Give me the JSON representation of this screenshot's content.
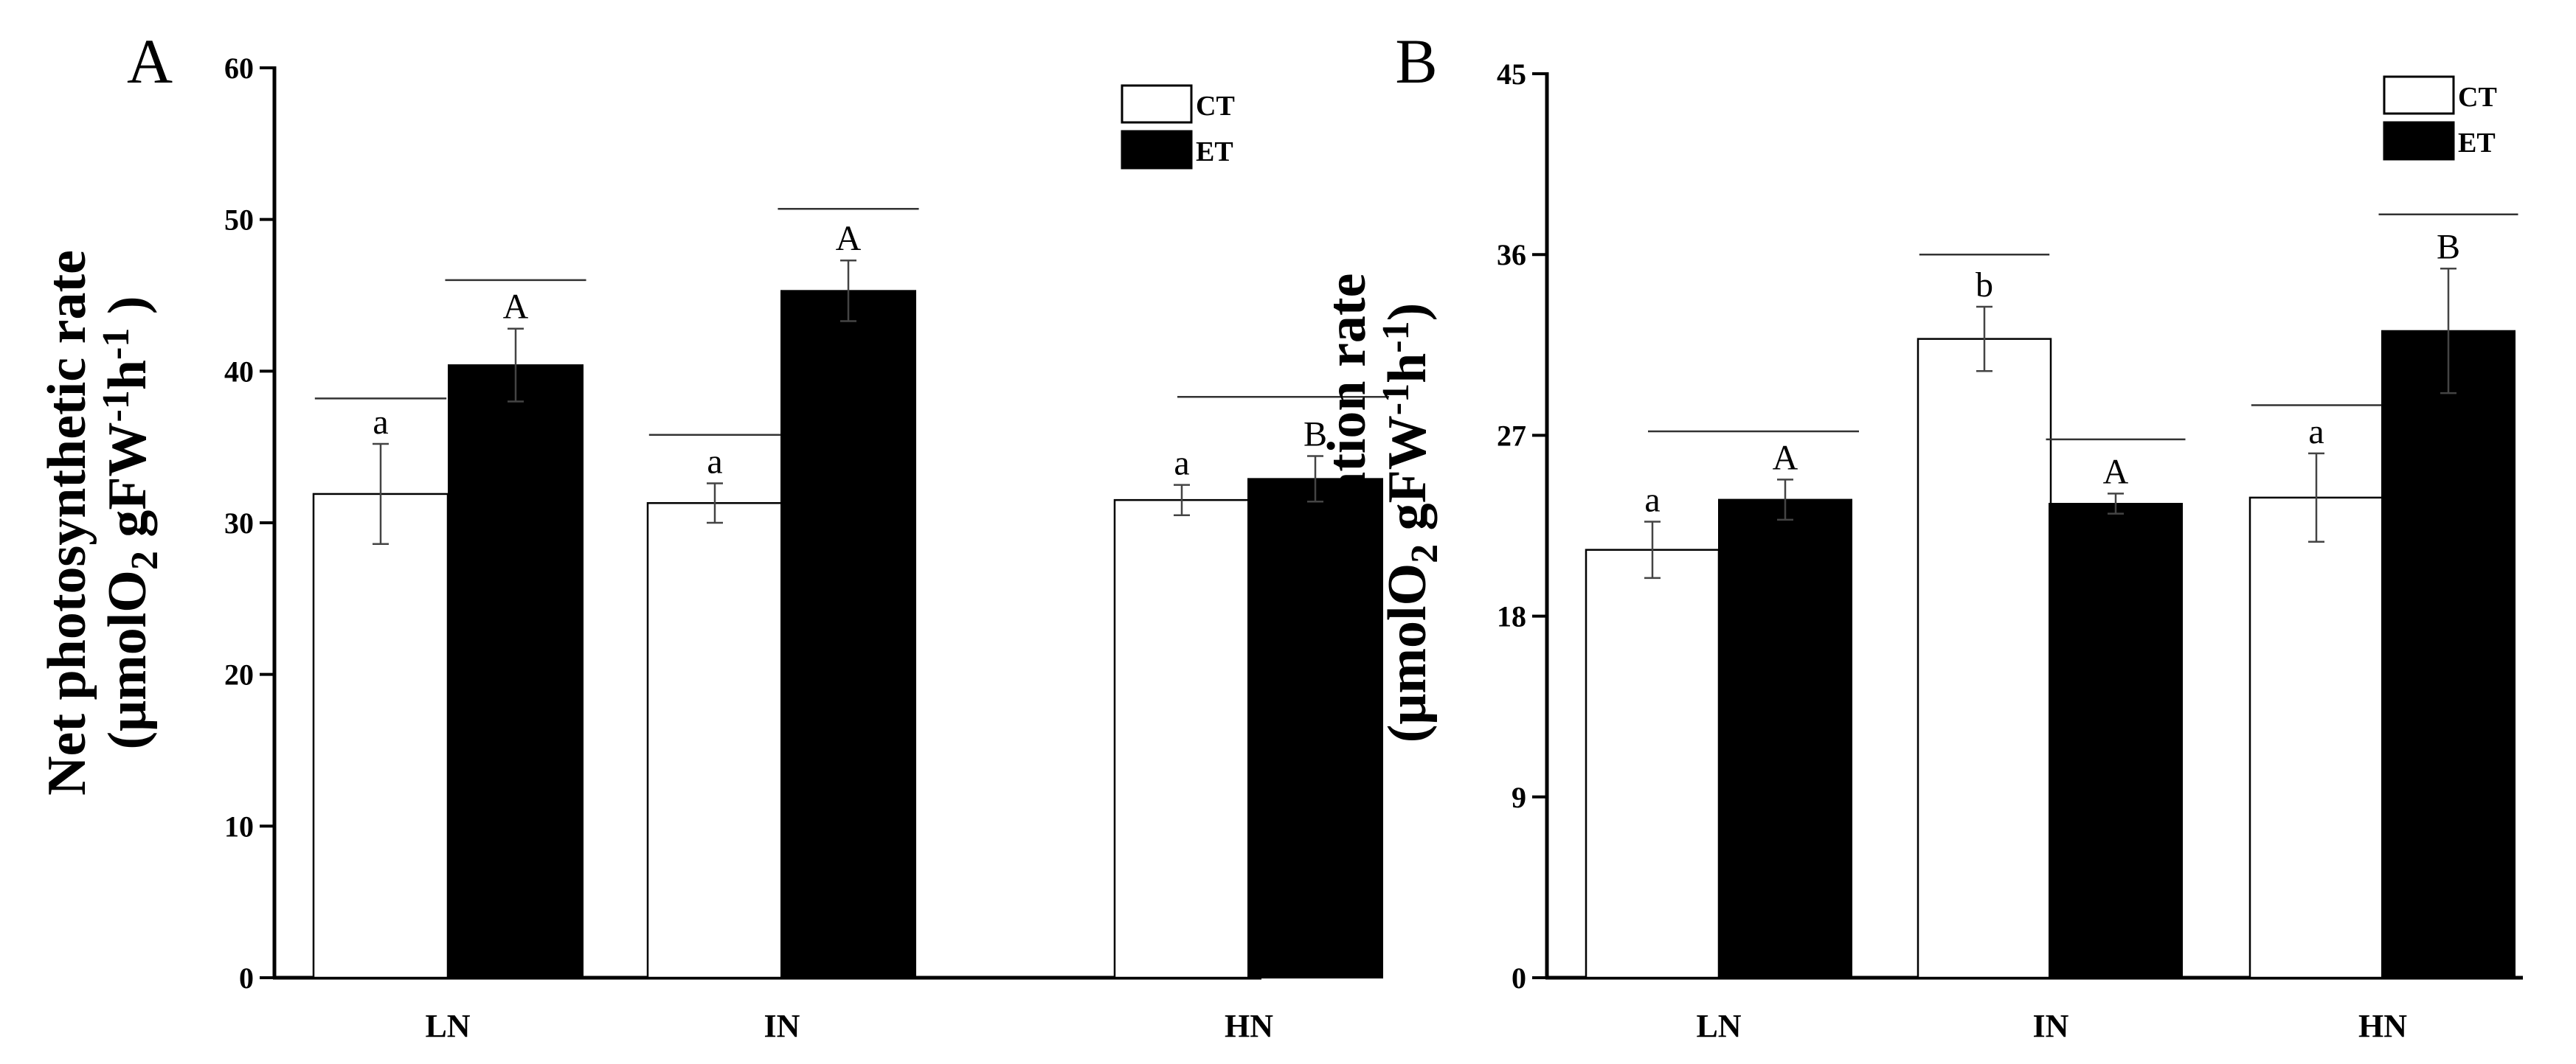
{
  "chart_data": [
    {
      "type": "bar",
      "panel": "A",
      "ylabel_line1": "Net photosynthetic rate",
      "ylabel_unit_parts": [
        "(μmolO",
        "2",
        " gFW",
        "-1",
        "h",
        "-1",
        " )"
      ],
      "ylim": [
        0,
        60
      ],
      "yticks": [
        "0",
        "10",
        "20",
        "30",
        "40",
        "50",
        "60"
      ],
      "categories": [
        "LN",
        "IN",
        "HN"
      ],
      "series": [
        {
          "name": "CT",
          "color": "#ffffff",
          "values": [
            31.9,
            31.3,
            31.5
          ],
          "errors": [
            3.3,
            1.3,
            1.0
          ],
          "labels": [
            "a",
            "a",
            "a"
          ]
        },
        {
          "name": "ET",
          "color": "#000000",
          "values": [
            40.4,
            45.3,
            32.9
          ],
          "errors": [
            2.4,
            2.0,
            1.5
          ],
          "labels": [
            "A",
            "A",
            "B"
          ]
        }
      ],
      "sig_lines": [
        {
          "cat": 0,
          "span": "ct",
          "y": 38.2
        },
        {
          "cat": 0,
          "span": "et",
          "y": 46.0
        },
        {
          "cat": 1,
          "span": "ct",
          "y": 35.8
        },
        {
          "cat": 1,
          "span": "et",
          "y": 50.7
        },
        {
          "cat": 2,
          "span": "both",
          "y": 38.3
        }
      ],
      "legend": {
        "position": "top-right",
        "entries": [
          "CT",
          "ET"
        ]
      }
    },
    {
      "type": "bar",
      "panel": "B",
      "ylabel_line1": "Dark respiration rate",
      "ylabel_unit_parts": [
        "(μmolO",
        "2",
        " gFW",
        "-1",
        "h",
        "-1",
        ")"
      ],
      "ylim": [
        0,
        45
      ],
      "yticks": [
        "0",
        "9",
        "18",
        "27",
        "36",
        "45"
      ],
      "categories": [
        "LN",
        "IN",
        "HN"
      ],
      "series": [
        {
          "name": "CT",
          "color": "#ffffff",
          "values": [
            21.3,
            31.8,
            23.9
          ],
          "errors": [
            1.4,
            1.6,
            2.2
          ],
          "labels": [
            "a",
            "b",
            "a"
          ]
        },
        {
          "name": "ET",
          "color": "#000000",
          "values": [
            23.8,
            23.6,
            32.2
          ],
          "errors": [
            1.0,
            0.5,
            3.1
          ],
          "labels": [
            "A",
            "A",
            "B"
          ]
        }
      ],
      "sig_lines": [
        {
          "cat": 0,
          "span": "both",
          "y": 27.2
        },
        {
          "cat": 1,
          "span": "ct",
          "y": 36.0
        },
        {
          "cat": 1,
          "span": "et",
          "y": 26.8
        },
        {
          "cat": 2,
          "span": "ct",
          "y": 28.5
        },
        {
          "cat": 2,
          "span": "et",
          "y": 38.0
        }
      ],
      "legend": {
        "position": "top-right",
        "entries": [
          "CT",
          "ET"
        ]
      }
    }
  ]
}
